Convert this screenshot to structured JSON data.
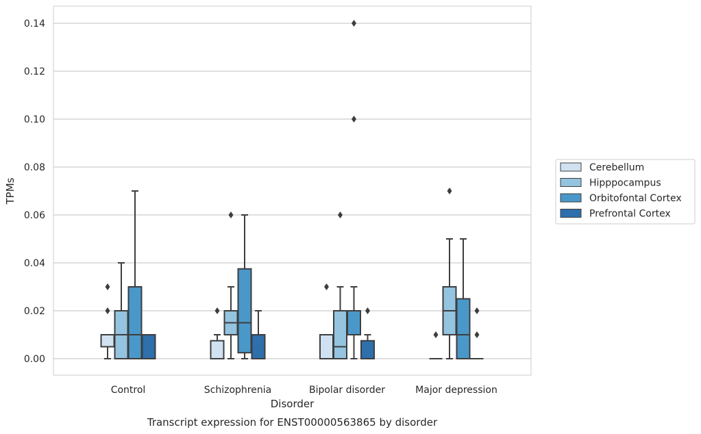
{
  "chart_data": {
    "type": "boxplot",
    "title": "",
    "caption": "Transcript expression for ENST00000563865 by disorder",
    "xlabel": "Disorder",
    "ylabel": "TPMs",
    "ylim": [
      -0.007,
      0.147
    ],
    "yticks": [
      "0.00",
      "0.02",
      "0.04",
      "0.06",
      "0.08",
      "0.10",
      "0.12",
      "0.14"
    ],
    "ytick_values": [
      0,
      0.02,
      0.04,
      0.06,
      0.08,
      0.1,
      0.12,
      0.14
    ],
    "grid": true,
    "legend_position": "right",
    "categories": [
      "Control",
      "Schizophrenia",
      "Bipolar disorder",
      "Major depression"
    ],
    "series": [
      {
        "name": "Cerebellum",
        "color": "#d0e1f2",
        "boxes": [
          {
            "whislo": 0,
            "q1": 0.005,
            "med": 0.01,
            "q3": 0.01,
            "whishi": 0.01,
            "fliers": [
              0.02,
              0.03
            ]
          },
          {
            "whislo": 0,
            "q1": 0,
            "med": 0,
            "q3": 0.0075,
            "whishi": 0.01,
            "fliers": [
              0.02
            ]
          },
          {
            "whislo": 0,
            "q1": 0,
            "med": 0.01,
            "q3": 0.01,
            "whishi": 0.01,
            "fliers": [
              0.03
            ]
          },
          {
            "whislo": 0,
            "q1": 0,
            "med": 0,
            "q3": 0,
            "whishi": 0,
            "fliers": [
              0.01
            ]
          }
        ]
      },
      {
        "name": "Hipppocampus",
        "color": "#94c4df",
        "boxes": [
          {
            "whislo": 0,
            "q1": 0,
            "med": 0.01,
            "q3": 0.02,
            "whishi": 0.04,
            "fliers": []
          },
          {
            "whislo": 0,
            "q1": 0.01,
            "med": 0.015,
            "q3": 0.02,
            "whishi": 0.03,
            "fliers": [
              0.06
            ]
          },
          {
            "whislo": 0,
            "q1": 0,
            "med": 0.005,
            "q3": 0.02,
            "whishi": 0.03,
            "fliers": [
              0.06
            ]
          },
          {
            "whislo": 0,
            "q1": 0.01,
            "med": 0.02,
            "q3": 0.03,
            "whishi": 0.05,
            "fliers": [
              0.07
            ]
          }
        ]
      },
      {
        "name": "Orbitofontal Cortex",
        "color": "#4a98c9",
        "boxes": [
          {
            "whislo": 0,
            "q1": 0,
            "med": 0.01,
            "q3": 0.03,
            "whishi": 0.07,
            "fliers": []
          },
          {
            "whislo": 0,
            "q1": 0.0025,
            "med": 0.015,
            "q3": 0.0375,
            "whishi": 0.06,
            "fliers": []
          },
          {
            "whislo": 0,
            "q1": 0.01,
            "med": 0.02,
            "q3": 0.02,
            "whishi": 0.03,
            "fliers": [
              0.1,
              0.14
            ]
          },
          {
            "whislo": 0,
            "q1": 0,
            "med": 0.01,
            "q3": 0.025,
            "whishi": 0.05,
            "fliers": []
          }
        ]
      },
      {
        "name": "Prefrontal Cortex",
        "color": "#2e6fac",
        "boxes": [
          {
            "whislo": 0,
            "q1": 0,
            "med": 0.01,
            "q3": 0.01,
            "whishi": 0.01,
            "fliers": []
          },
          {
            "whislo": 0,
            "q1": 0,
            "med": 0.01,
            "q3": 0.01,
            "whishi": 0.02,
            "fliers": []
          },
          {
            "whislo": 0,
            "q1": 0,
            "med": 0,
            "q3": 0.0075,
            "whishi": 0.01,
            "fliers": [
              0.02
            ]
          },
          {
            "whislo": 0,
            "q1": 0,
            "med": 0,
            "q3": 0,
            "whishi": 0,
            "fliers": [
              0.01,
              0.02
            ]
          }
        ]
      }
    ]
  },
  "colors": {
    "grid": "#cccccc",
    "frame": "#cccccc",
    "line": "#3d3d3d"
  }
}
